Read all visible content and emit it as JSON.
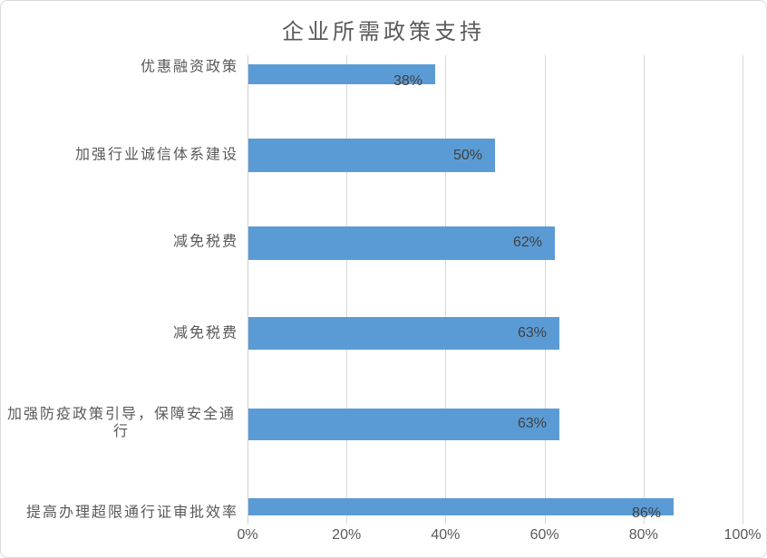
{
  "chart_data": {
    "type": "bar",
    "orientation": "horizontal",
    "title": "企业所需政策支持",
    "categories": [
      "优惠融资政策",
      "加强行业诚信体系建设",
      "减免税费",
      "减免税费",
      "加强防疫政策引导，保障安全通行",
      "提高办理超限通行证审批效率"
    ],
    "values": [
      38,
      50,
      62,
      63,
      63,
      86
    ],
    "value_labels": [
      "38%",
      "50%",
      "62%",
      "63%",
      "63%",
      "86%"
    ],
    "x_ticks": [
      "0%",
      "20%",
      "40%",
      "60%",
      "80%",
      "100%"
    ],
    "x_tick_values": [
      0,
      20,
      40,
      60,
      80,
      100
    ],
    "xlim": [
      0,
      100
    ],
    "xlabel": "",
    "ylabel": "",
    "grid": "vertical",
    "legend": "none",
    "label_position": "inside-end",
    "bar_color": "#5B9BD5"
  },
  "colors": {
    "bar": "#5B9BD5",
    "grid": "#D9D9D9",
    "border": "#D9D9D9",
    "background": "#FFFFFF",
    "title_text": "#595959",
    "axis_text": "#595959",
    "data_label_text": "#404040"
  }
}
